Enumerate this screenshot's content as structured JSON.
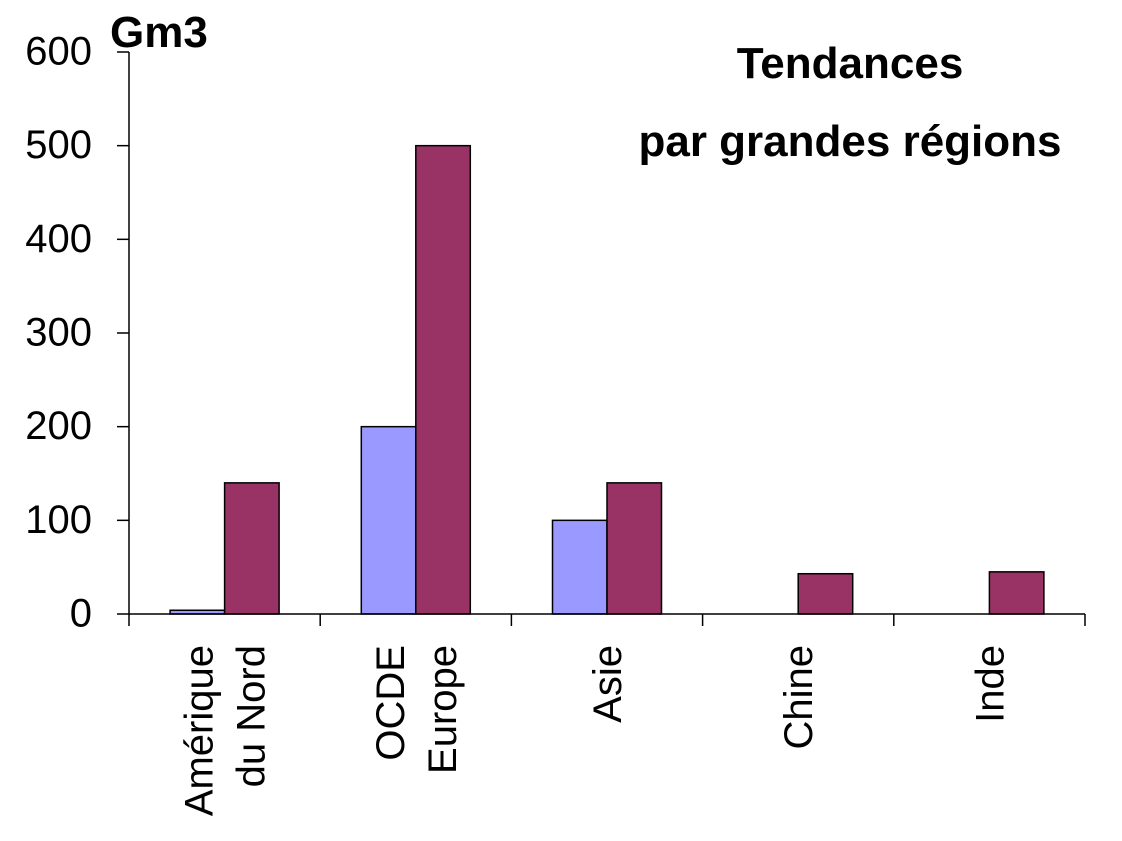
{
  "chart_data": {
    "type": "bar",
    "title": [
      "Tendances",
      "par grandes régions"
    ],
    "ylabel": "Gm3",
    "categories": [
      [
        "Amérique",
        "du Nord"
      ],
      [
        "OCDE",
        "Europe"
      ],
      [
        "Asie"
      ],
      [
        "Chine"
      ],
      [
        "Inde"
      ]
    ],
    "series": [
      {
        "color": "#9999ff",
        "values": [
          4,
          200,
          100,
          0,
          0
        ]
      },
      {
        "color": "#993366",
        "values": [
          140,
          500,
          140,
          43,
          45
        ]
      }
    ],
    "ylim": [
      0,
      600
    ],
    "yticks": [
      0,
      100,
      200,
      300,
      400,
      500,
      600
    ]
  }
}
